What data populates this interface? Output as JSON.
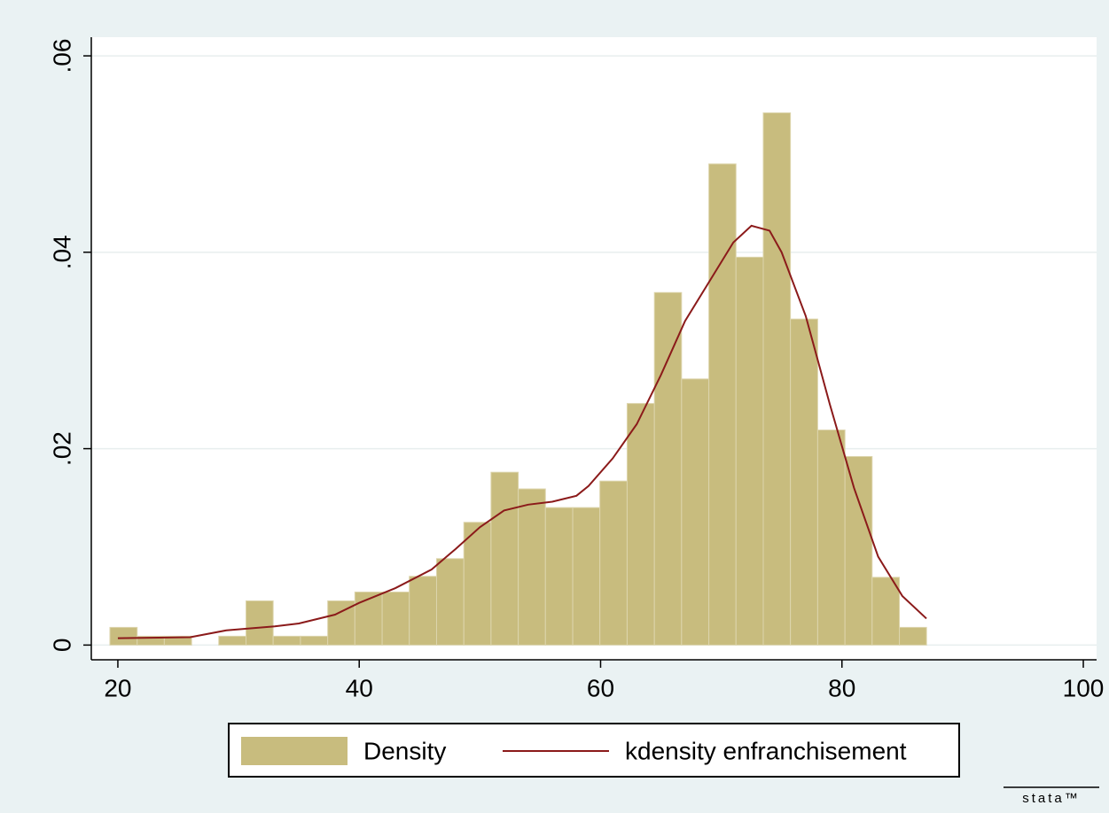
{
  "chart_data": {
    "type": "histogram",
    "xlim": [
      17.8,
      101.1
    ],
    "ylim": [
      -0.0015,
      0.0619
    ],
    "xticks": [
      20,
      40,
      60,
      80,
      100
    ],
    "yticks": [
      0,
      {
        "value": 0.02,
        "label": ".02"
      },
      {
        "value": 0.04,
        "label": ".04"
      },
      {
        "value": 0.06,
        "label": ".06"
      }
    ],
    "grid": true,
    "legend": "bottom",
    "logo_text": "stata™",
    "series": [
      {
        "name": "Density",
        "type": "histogram",
        "color": "#c8bc7e",
        "bins": [
          19.34,
          21.6,
          23.85,
          26.11,
          28.36,
          30.62,
          32.87,
          35.13,
          37.39,
          39.64,
          41.9,
          44.15,
          46.41,
          48.67,
          50.92,
          53.18,
          55.43,
          57.69,
          59.94,
          62.2,
          64.46,
          66.71,
          68.97,
          71.22,
          73.48,
          75.73,
          77.99,
          80.25,
          82.5,
          84.76,
          87.01
        ],
        "values": [
          0.0018,
          0.0009,
          0.0009,
          0,
          0.0009,
          0.0045,
          0.0009,
          0.0009,
          0.0045,
          0.0054,
          0.0054,
          0.007,
          0.0088,
          0.0125,
          0.0176,
          0.0159,
          0.014,
          0.014,
          0.0167,
          0.0246,
          0.0359,
          0.0271,
          0.049,
          0.0395,
          0.0542,
          0.0332,
          0.0219,
          0.0192,
          0.0069,
          0.0018
        ]
      },
      {
        "name": "kdensity enfranchisement",
        "type": "line",
        "color": "#8b1a1a",
        "x": [
          20,
          26,
          29,
          33,
          35,
          38,
          40,
          43,
          46,
          48,
          50,
          52,
          54,
          56,
          58,
          59,
          61,
          63,
          65,
          67,
          69,
          71,
          72.5,
          74,
          75,
          77,
          79,
          81,
          83,
          85,
          87
        ],
        "values": [
          0.0007,
          0.0008,
          0.0015,
          0.0019,
          0.0022,
          0.0031,
          0.0043,
          0.0058,
          0.0077,
          0.0098,
          0.012,
          0.0137,
          0.0143,
          0.0146,
          0.0152,
          0.0162,
          0.019,
          0.0225,
          0.0275,
          0.033,
          0.037,
          0.041,
          0.0427,
          0.0422,
          0.04,
          0.0335,
          0.0245,
          0.016,
          0.009,
          0.005,
          0.0027
        ]
      }
    ]
  }
}
